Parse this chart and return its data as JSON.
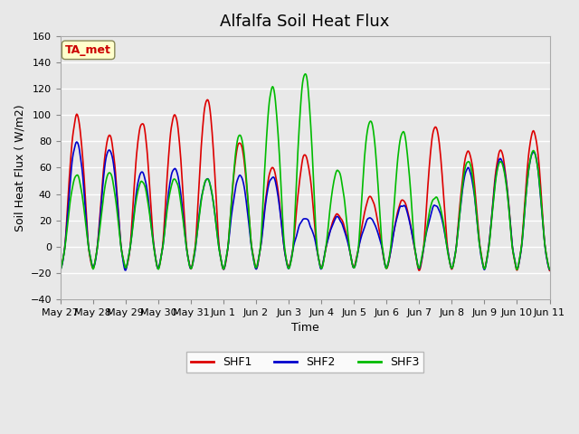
{
  "title": "Alfalfa Soil Heat Flux",
  "xlabel": "Time",
  "ylabel": "Soil Heat Flux ( W/m2)",
  "ylim": [
    -40,
    160
  ],
  "yticks": [
    -40,
    -20,
    0,
    20,
    40,
    60,
    80,
    100,
    120,
    140,
    160
  ],
  "background_color": "#e8e8e8",
  "plot_bg_color": "#e8e8e8",
  "grid_color": "#ffffff",
  "shf1_color": "#dd0000",
  "shf2_color": "#0000cc",
  "shf3_color": "#00bb00",
  "legend_label1": "SHF1",
  "legend_label2": "SHF2",
  "legend_label3": "SHF3",
  "annotation_text": "TA_met",
  "annotation_color": "#cc0000",
  "annotation_bg": "#ffffcc",
  "x_tick_labels": [
    "May 27",
    "May 28",
    "May 29",
    "May 30",
    "May 31",
    "Jun 1",
    "Jun 2",
    "Jun 3",
    "Jun 4",
    "Jun 5",
    "Jun 6",
    "Jun 7",
    "Jun 8",
    "Jun 9",
    "Jun 10",
    "Jun 11"
  ],
  "n_points": 336,
  "start_day": 0,
  "end_day": 15
}
